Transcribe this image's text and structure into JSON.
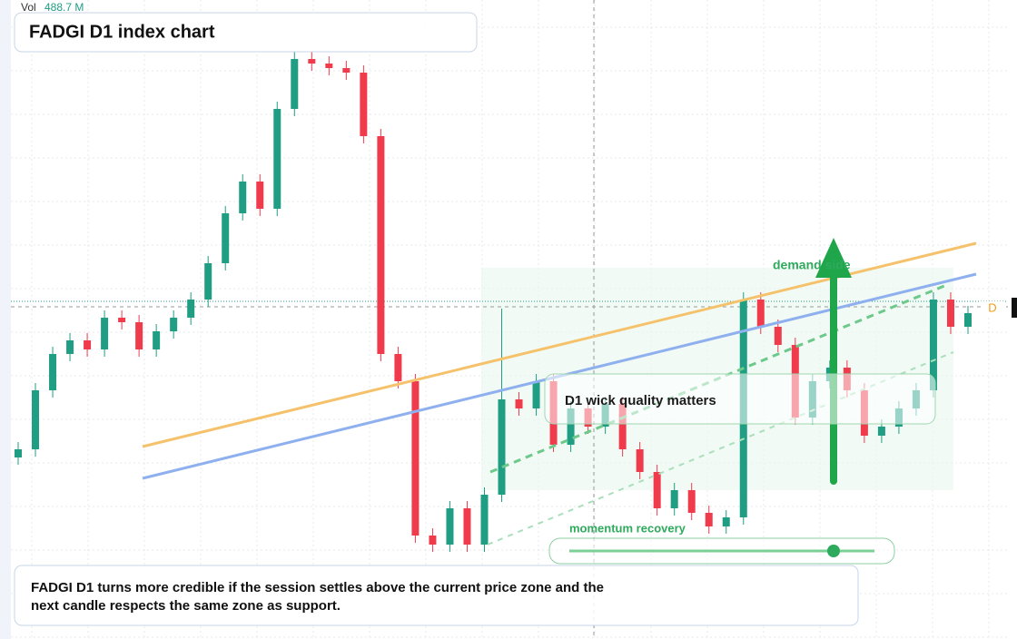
{
  "header": {
    "vol_label": "Vol",
    "vol_value": "488.7 M",
    "title": "FADGI D1 index chart"
  },
  "annotations": {
    "zone_label": "demand side",
    "callout": "D1 wick quality matters",
    "slider_label": "momentum recovery",
    "price_tag": "D",
    "note_line1": "FADGI D1 turns more credible if the session settles above the current price zone and the",
    "note_line2": "next candle respects the same zone as support."
  },
  "chart_data": {
    "type": "candlestick",
    "ylim": [
      0,
      704
    ],
    "up_color": "#1f9e83",
    "down_color": "#ef3b4c",
    "open": [
      200,
      209,
      274,
      314,
      329,
      319,
      354,
      349,
      319,
      339,
      354,
      374,
      414,
      469,
      504,
      474,
      584,
      639,
      634,
      629,
      624,
      554,
      314,
      284,
      114,
      104,
      144,
      104,
      159,
      264,
      254,
      284,
      214,
      254,
      234,
      259,
      209,
      184,
      144,
      164,
      139,
      124,
      134,
      374,
      344,
      324,
      244,
      284,
      299,
      274,
      224,
      234,
      254,
      274,
      374,
      344
    ],
    "high": [
      217,
      282,
      322,
      337,
      337,
      362,
      362,
      357,
      347,
      362,
      382,
      422,
      477,
      512,
      512,
      592,
      647,
      647,
      642,
      637,
      632,
      562,
      322,
      292,
      122,
      152,
      152,
      167,
      364,
      272,
      292,
      292,
      262,
      262,
      267,
      267,
      217,
      192,
      172,
      172,
      147,
      142,
      382,
      382,
      352,
      332,
      292,
      307,
      307,
      282,
      242,
      262,
      282,
      382,
      382,
      367
    ],
    "low": [
      192,
      201,
      266,
      306,
      311,
      311,
      341,
      311,
      311,
      331,
      346,
      366,
      406,
      461,
      466,
      466,
      576,
      626,
      621,
      616,
      546,
      306,
      276,
      106,
      96,
      96,
      96,
      96,
      151,
      246,
      246,
      206,
      206,
      226,
      226,
      201,
      176,
      136,
      136,
      131,
      116,
      116,
      126,
      336,
      316,
      236,
      236,
      276,
      266,
      216,
      216,
      226,
      246,
      266,
      336,
      336
    ],
    "close": [
      209,
      274,
      314,
      329,
      319,
      354,
      349,
      319,
      339,
      354,
      374,
      414,
      469,
      504,
      474,
      584,
      639,
      634,
      629,
      624,
      554,
      314,
      284,
      114,
      104,
      144,
      104,
      159,
      264,
      254,
      284,
      214,
      254,
      234,
      259,
      209,
      184,
      144,
      164,
      139,
      124,
      134,
      374,
      344,
      324,
      244,
      284,
      299,
      274,
      224,
      234,
      254,
      274,
      374,
      344,
      359
    ]
  }
}
